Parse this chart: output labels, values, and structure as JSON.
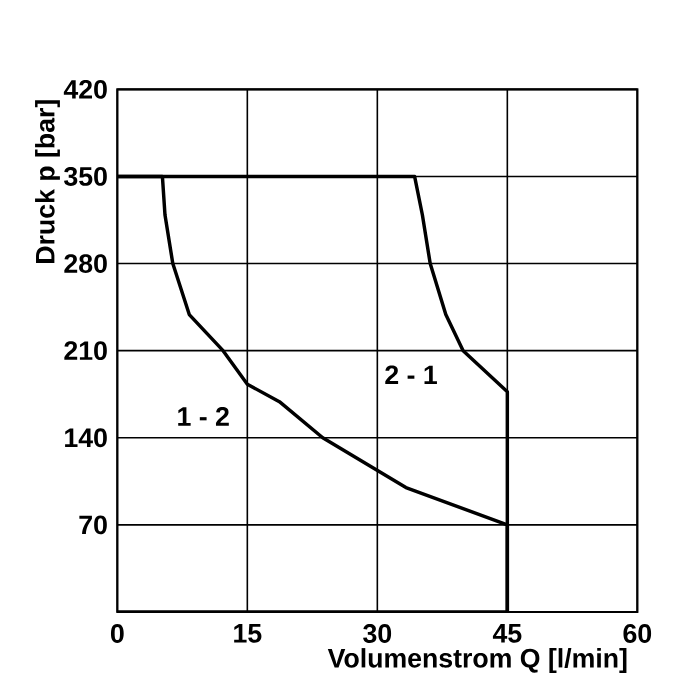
{
  "chart_data": {
    "type": "line",
    "xlabel": "Volumenstrom Q [l/min]",
    "ylabel": "Druck p [bar]",
    "xlim": [
      0,
      60
    ],
    "xticks": [
      0,
      15,
      30,
      45,
      60
    ],
    "ylim": [
      0,
      420
    ],
    "yticks": [
      70,
      140,
      210,
      280,
      350,
      420
    ],
    "grid": true,
    "legend": false,
    "marker": "none",
    "line_style": "solid",
    "series": [
      {
        "name": "1 - 2",
        "color": "#000000",
        "x": [
          0,
          5.2,
          5.5,
          6.4,
          8.3,
          12.2,
          15,
          18.7,
          23.7,
          33.3,
          45,
          45,
          0
        ],
        "values": [
          350,
          350,
          319,
          280,
          239,
          210,
          183,
          169,
          140,
          100,
          70,
          0,
          0
        ]
      },
      {
        "name": "2 - 1",
        "color": "#000000",
        "x": [
          0,
          34.3,
          35.2,
          36.1,
          37.9,
          39.9,
          45,
          45
        ],
        "values": [
          350,
          350,
          319,
          280,
          239,
          210,
          177,
          0
        ]
      }
    ]
  }
}
